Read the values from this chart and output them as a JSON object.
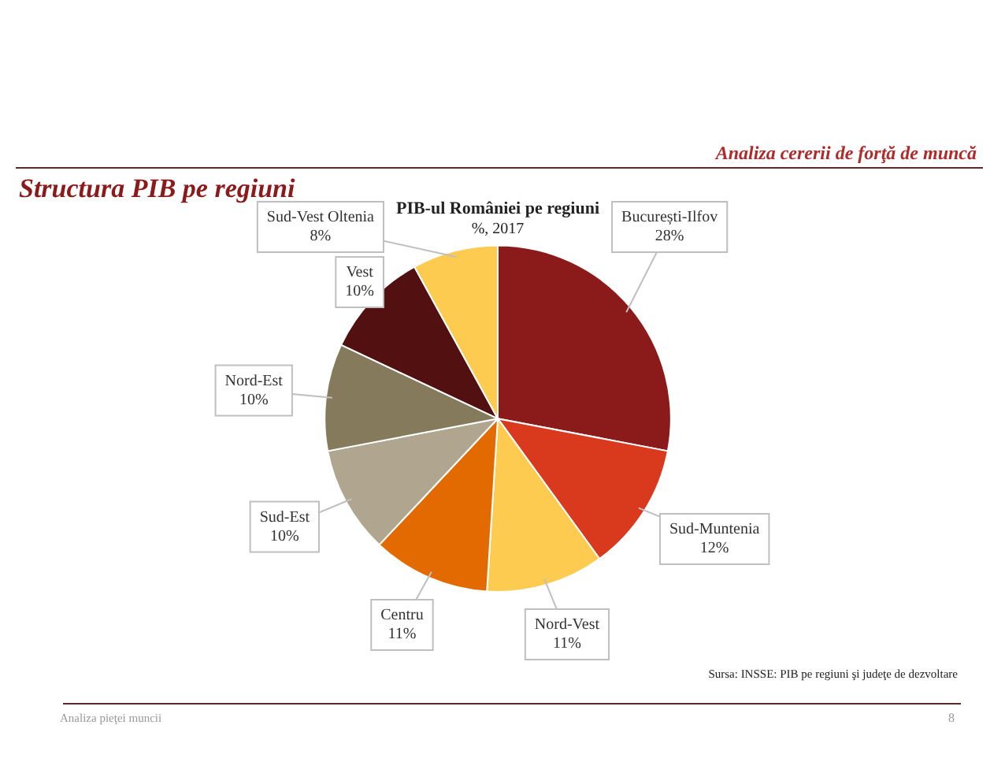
{
  "chart_data": {
    "type": "pie",
    "title": "PIB-ul României pe regiuni",
    "subtitle": "%, 2017",
    "categories": [
      "București-Ilfov",
      "Sud-Muntenia",
      "Nord-Vest",
      "Centru",
      "Sud-Est",
      "Nord-Est",
      "Vest",
      "Sud-Vest Oltenia"
    ],
    "values": [
      28,
      12,
      11,
      11,
      10,
      10,
      10,
      8
    ],
    "value_labels": [
      "28%",
      "12%",
      "11%",
      "11%",
      "10%",
      "10%",
      "10%",
      "8%"
    ],
    "colors": [
      "#8b1a1a",
      "#d93a1e",
      "#fdcb4f",
      "#e26a00",
      "#b0a690",
      "#857a5c",
      "#521010",
      "#fdcb4f"
    ],
    "legend": false,
    "annotations": [
      "Analiza cererii de forţă de muncă",
      "Structura PIB pe regiuni",
      "Sursa: INSSE: PIB pe regiuni şi judeţe de dezvoltare",
      "Analiza pieţei muncii",
      "8"
    ]
  }
}
